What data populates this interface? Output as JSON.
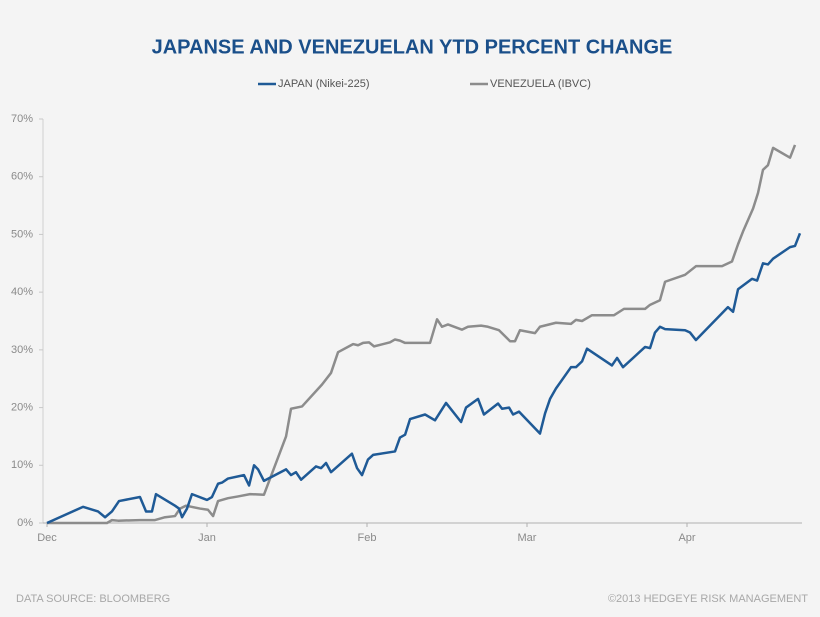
{
  "chart_data": {
    "type": "line",
    "title": "JAPANSE AND VENEZUELAN YTD PERCENT CHANGE",
    "footer_left": "DATA SOURCE: BLOOMBERG",
    "footer_right": "©2013 HEDGEYE RISK MANAGEMENT",
    "xlim": [
      0,
      4.75
    ],
    "xticks": [
      {
        "value": 0,
        "label": "Dec"
      },
      {
        "value": 1,
        "label": "Jan"
      },
      {
        "value": 2,
        "label": "Feb"
      },
      {
        "value": 3,
        "label": "Mar"
      },
      {
        "value": 4,
        "label": "Apr"
      }
    ],
    "ylim": [
      0,
      70
    ],
    "yticks": [
      {
        "value": 0,
        "label": "0%"
      },
      {
        "value": 10,
        "label": "10%"
      },
      {
        "value": 20,
        "label": "20%"
      },
      {
        "value": 30,
        "label": "30%"
      },
      {
        "value": 40,
        "label": "40%"
      },
      {
        "value": 50,
        "label": "50%"
      },
      {
        "value": 60,
        "label": "60%"
      },
      {
        "value": 70,
        "label": "70%"
      }
    ],
    "grid": false,
    "legend": "top",
    "series": [
      {
        "name": "JAPAN (Nikei-225)",
        "color": "#1f5a96",
        "x": [
          0,
          0.225,
          0.319,
          0.363,
          0.406,
          0.45,
          0.581,
          0.619,
          0.656,
          0.681,
          0.8,
          0.825,
          0.844,
          0.875,
          0.906,
          1,
          1.031,
          1.069,
          1.094,
          1.131,
          1.231,
          1.263,
          1.294,
          1.319,
          1.356,
          1.494,
          1.525,
          1.556,
          1.588,
          1.681,
          1.713,
          1.744,
          1.775,
          1.906,
          1.938,
          1.969,
          2.006,
          2.038,
          2.175,
          2.206,
          2.238,
          2.269,
          2.363,
          2.425,
          2.494,
          2.588,
          2.619,
          2.694,
          2.731,
          2.819,
          2.844,
          2.888,
          2.913,
          2.95,
          3.081,
          3.113,
          3.144,
          3.181,
          3.275,
          3.306,
          3.344,
          3.375,
          3.531,
          3.563,
          3.6,
          3.738,
          3.769,
          3.8,
          3.831,
          3.863,
          3.988,
          4.019,
          4.056,
          4.256,
          4.288,
          4.319,
          4.406,
          4.438,
          4.475,
          4.506,
          4.538,
          4.644,
          4.675,
          4.706
        ],
        "values": [
          0,
          2.8,
          2,
          1,
          2,
          3.8,
          4.5,
          2,
          2,
          5,
          3,
          2.5,
          1,
          2.5,
          5,
          4,
          4.5,
          6.8,
          7,
          7.7,
          8.3,
          6.5,
          10,
          9.3,
          7.3,
          9.3,
          8.3,
          8.8,
          7.5,
          9.8,
          9.5,
          10.4,
          8.8,
          12,
          9.5,
          8.3,
          11,
          11.8,
          12.4,
          14.8,
          15.3,
          18,
          18.8,
          17.8,
          20.8,
          17.5,
          20,
          21.5,
          18.8,
          20.7,
          19.8,
          20,
          18.8,
          19.3,
          15.5,
          19,
          21.5,
          23.3,
          27,
          27,
          28,
          30.2,
          27.3,
          28.6,
          27,
          30.5,
          30.3,
          33,
          34,
          33.6,
          33.4,
          33,
          31.7,
          37.4,
          36.6,
          40.5,
          42.3,
          42,
          45,
          44.8,
          45.8,
          47.8,
          48,
          50.2
        ]
      },
      {
        "name": "VENEZUELA (IBVC)",
        "color": "#8c8c8c",
        "x": [
          0,
          0.375,
          0.406,
          0.444,
          0.581,
          0.675,
          0.738,
          0.8,
          0.831,
          0.869,
          0.956,
          1.006,
          1.038,
          1.069,
          1.131,
          1.194,
          1.269,
          1.356,
          1.494,
          1.525,
          1.594,
          1.719,
          1.775,
          1.819,
          1.913,
          1.944,
          1.975,
          2.013,
          2.044,
          2.144,
          2.175,
          2.206,
          2.238,
          2.394,
          2.438,
          2.469,
          2.506,
          2.594,
          2.631,
          2.713,
          2.756,
          2.825,
          2.894,
          2.925,
          2.956,
          3.05,
          3.081,
          3.181,
          3.275,
          3.306,
          3.344,
          3.406,
          3.544,
          3.606,
          3.738,
          3.769,
          3.831,
          3.863,
          3.988,
          4.056,
          4.219,
          4.281,
          4.319,
          4.35,
          4.413,
          4.444,
          4.475,
          4.506,
          4.538,
          4.644,
          4.675
        ],
        "values": [
          0,
          0,
          0.5,
          0.4,
          0.5,
          0.5,
          1,
          1.2,
          2.5,
          3,
          2.5,
          2.3,
          1.2,
          3.8,
          4.3,
          4.6,
          5,
          4.9,
          15,
          19.8,
          20.2,
          24,
          26,
          29.6,
          31,
          30.8,
          31.2,
          31.3,
          30.6,
          31.3,
          31.8,
          31.6,
          31.2,
          31.2,
          35.3,
          34,
          34.4,
          33.5,
          34,
          34.2,
          34,
          33.4,
          31.5,
          31.5,
          33.4,
          32.9,
          34,
          34.7,
          34.5,
          35.2,
          35,
          36,
          36,
          37.1,
          37.1,
          37.8,
          38.6,
          41.8,
          43,
          44.5,
          44.5,
          45.3,
          48.3,
          50.5,
          54.5,
          57.2,
          61.2,
          62,
          65,
          63.3,
          65.5
        ]
      }
    ]
  }
}
